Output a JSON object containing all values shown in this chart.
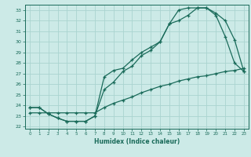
{
  "xlabel": "Humidex (Indice chaleur)",
  "bg_color": "#cceae7",
  "grid_color": "#aad4d0",
  "line_color": "#1a6b5a",
  "xlim": [
    -0.5,
    23.5
  ],
  "ylim": [
    21.8,
    33.5
  ],
  "xticks": [
    0,
    1,
    2,
    3,
    4,
    5,
    6,
    7,
    8,
    9,
    10,
    11,
    12,
    13,
    14,
    15,
    16,
    17,
    18,
    19,
    20,
    21,
    22,
    23
  ],
  "yticks": [
    22,
    23,
    24,
    25,
    26,
    27,
    28,
    29,
    30,
    31,
    32,
    33
  ],
  "line1_x": [
    0,
    1,
    2,
    3,
    4,
    5,
    6,
    7,
    8,
    9,
    10,
    11,
    12,
    13,
    14,
    15,
    16,
    17,
    18,
    19,
    20,
    21,
    22,
    23
  ],
  "line1_y": [
    23.8,
    23.8,
    23.2,
    22.8,
    22.5,
    22.5,
    22.5,
    23.0,
    25.5,
    26.2,
    27.2,
    27.7,
    28.7,
    29.2,
    30.0,
    31.7,
    32.0,
    32.5,
    33.2,
    33.2,
    32.5,
    30.5,
    28.0,
    27.2
  ],
  "line2_x": [
    0,
    1,
    2,
    3,
    4,
    5,
    6,
    7,
    8,
    9,
    10,
    11,
    12,
    13,
    14,
    15,
    16,
    17,
    18,
    19,
    20,
    21,
    22,
    23
  ],
  "line2_y": [
    23.8,
    23.8,
    23.2,
    22.8,
    22.5,
    22.5,
    22.5,
    23.0,
    26.7,
    27.3,
    27.5,
    28.3,
    29.0,
    29.5,
    30.0,
    31.7,
    33.0,
    33.2,
    33.2,
    33.2,
    32.7,
    32.0,
    30.2,
    27.2
  ],
  "line3_x": [
    0,
    1,
    2,
    3,
    4,
    5,
    6,
    7,
    8,
    9,
    10,
    11,
    12,
    13,
    14,
    15,
    16,
    17,
    18,
    19,
    20,
    21,
    22,
    23
  ],
  "line3_y": [
    23.3,
    23.3,
    23.3,
    23.3,
    23.3,
    23.3,
    23.3,
    23.3,
    23.8,
    24.2,
    24.5,
    24.8,
    25.2,
    25.5,
    25.8,
    26.0,
    26.3,
    26.5,
    26.7,
    26.8,
    27.0,
    27.2,
    27.3,
    27.5
  ]
}
